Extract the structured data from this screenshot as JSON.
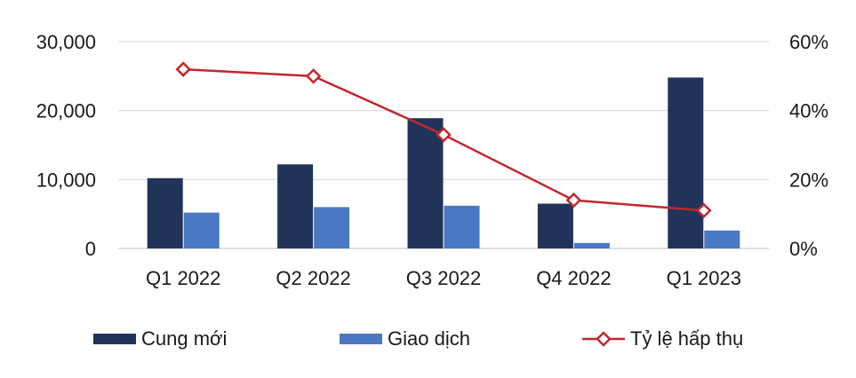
{
  "chart_data": {
    "type": "bar",
    "categories": [
      "Q1 2022",
      "Q2 2022",
      "Q3 2022",
      "Q4 2022",
      "Q1 2023"
    ],
    "series": [
      {
        "name": "Cung mới",
        "type": "bar",
        "axis": "left",
        "color": "#22335a",
        "values": [
          10200,
          12200,
          18900,
          6500,
          24800
        ]
      },
      {
        "name": "Giao dịch",
        "type": "bar",
        "axis": "left",
        "color": "#4a78c2",
        "values": [
          5200,
          6000,
          6200,
          800,
          2600
        ]
      },
      {
        "name": "Tỷ lệ hấp thụ",
        "type": "line",
        "axis": "right",
        "color": "#c0282d",
        "marker": "diamond",
        "values": [
          0.52,
          0.5,
          0.33,
          0.14,
          0.11
        ]
      }
    ],
    "y_left": {
      "ylim": [
        0,
        30000
      ],
      "ticks": [
        "30,000",
        "20,000",
        "10,000",
        "0"
      ],
      "tick_values": [
        30000,
        20000,
        10000,
        0
      ]
    },
    "y_right": {
      "ylim": [
        0,
        0.6
      ],
      "ticks": [
        "60%",
        "40%",
        "20%",
        "0%"
      ],
      "tick_values": [
        0.6,
        0.4,
        0.2,
        0
      ]
    },
    "grid": true,
    "legend_position": "bottom",
    "title": "",
    "xlabel": "",
    "ylabel": ""
  }
}
